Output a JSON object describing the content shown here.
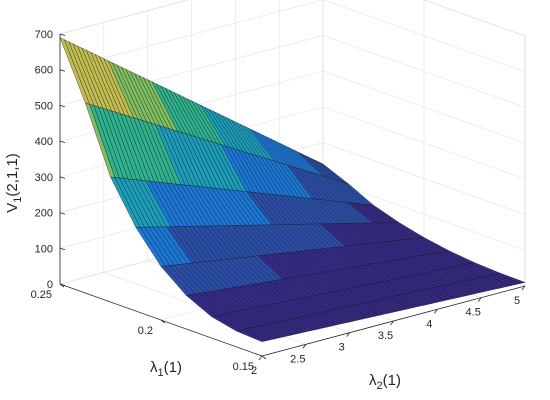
{
  "chart_data": {
    "type": "surface",
    "title": "",
    "xlabel": {
      "main": "λ",
      "sub": "2",
      "suffix": "(1)"
    },
    "ylabel": {
      "main": "λ",
      "sub": "1",
      "suffix": "(1)"
    },
    "zlabel": {
      "main": "V",
      "sub": "1",
      "suffix": "(2,1,1)"
    },
    "xlim": [
      2,
      5
    ],
    "ylim": [
      0.15,
      0.25
    ],
    "zlim": [
      0,
      700
    ],
    "x_ticks": [
      "2",
      "2.5",
      "3",
      "3.5",
      "4",
      "4.5",
      "5"
    ],
    "x_tick_values": [
      2,
      2.5,
      3,
      3.5,
      4,
      4.5,
      5
    ],
    "y_ticks": [
      "0.15",
      "0.2",
      "0.25"
    ],
    "y_tick_values": [
      0.15,
      0.2,
      0.25
    ],
    "z_ticks": [
      "0",
      "100",
      "200",
      "300",
      "400",
      "500",
      "600",
      "700"
    ],
    "z_tick_values": [
      0,
      100,
      200,
      300,
      400,
      500,
      600,
      700
    ],
    "colormap": "parula",
    "colors": [
      "#352a87",
      "#2a4ea8",
      "#1a77d6",
      "#1b9ebb",
      "#2fb28e",
      "#7fbf62",
      "#c3bd50",
      "#e0cf6c"
    ],
    "grid": true,
    "surface_samples": {
      "description_of_axes": "z value at the two x-edges as a function of y",
      "y": [
        0.15,
        0.175,
        0.2,
        0.225,
        0.25
      ],
      "z_at_x_min": [
        40,
        60,
        150,
        350,
        690
      ],
      "z_at_x_max": [
        10,
        15,
        35,
        75,
        140
      ]
    }
  }
}
